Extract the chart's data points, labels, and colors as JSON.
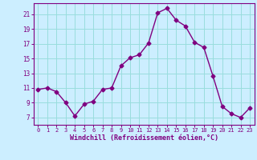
{
  "x": [
    0,
    1,
    2,
    3,
    4,
    5,
    6,
    7,
    8,
    9,
    10,
    11,
    12,
    13,
    14,
    15,
    16,
    17,
    18,
    19,
    20,
    21,
    22,
    23
  ],
  "y": [
    10.8,
    11.0,
    10.5,
    9.0,
    7.2,
    8.8,
    9.2,
    10.8,
    11.0,
    14.0,
    15.1,
    15.5,
    17.1,
    21.2,
    21.8,
    20.2,
    19.4,
    17.2,
    16.5,
    12.6,
    8.5,
    7.5,
    7.0,
    8.3
  ],
  "line_color": "#800080",
  "marker": "D",
  "marker_size": 2.5,
  "bg_color": "#cceeff",
  "grid_color": "#99dddd",
  "axis_color": "#800080",
  "xlabel": "Windchill (Refroidissement éolien,°C)",
  "ylim": [
    6,
    22.5
  ],
  "xlim": [
    -0.5,
    23.5
  ],
  "yticks": [
    7,
    9,
    11,
    13,
    15,
    17,
    19,
    21
  ],
  "xticks": [
    0,
    1,
    2,
    3,
    4,
    5,
    6,
    7,
    8,
    9,
    10,
    11,
    12,
    13,
    14,
    15,
    16,
    17,
    18,
    19,
    20,
    21,
    22,
    23
  ]
}
